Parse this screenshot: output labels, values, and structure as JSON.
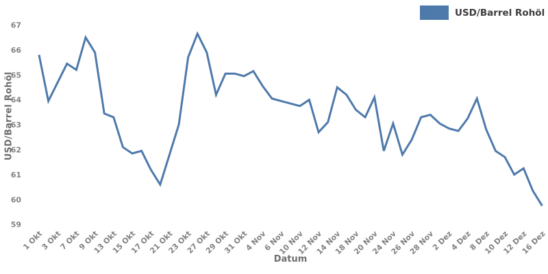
{
  "chart_data": {
    "type": "line",
    "title": "",
    "xlabel": "Datum",
    "ylabel": "USD/Barrel Rohöl",
    "legend": {
      "label": "USD/Barrel Rohöl",
      "position": "top-right"
    },
    "grid": false,
    "ylim": [
      59,
      67
    ],
    "yticks": [
      59,
      60,
      61,
      62,
      63,
      64,
      65,
      66,
      67
    ],
    "x": [
      "1 Okt",
      "2 Okt",
      "3 Okt",
      "6 Okt",
      "7 Okt",
      "8 Okt",
      "9 Okt",
      "10 Okt",
      "13 Okt",
      "14 Okt",
      "15 Okt",
      "16 Okt",
      "17 Okt",
      "20 Okt",
      "21 Okt",
      "22 Okt",
      "23 Okt",
      "24 Okt",
      "27 Okt",
      "28 Okt",
      "29 Okt",
      "30 Okt",
      "31 Okt",
      "3 Nov",
      "4 Nov",
      "5 Nov",
      "6 Nov",
      "7 Nov",
      "10 Nov",
      "11 Nov",
      "12 Nov",
      "13 Nov",
      "14 Nov",
      "17 Nov",
      "18 Nov",
      "19 Nov",
      "20 Nov",
      "21 Nov",
      "24 Nov",
      "25 Nov",
      "26 Nov",
      "27 Nov",
      "28 Nov",
      "1 Dez",
      "2 Dez",
      "3 Dez",
      "4 Dez",
      "5 Dez",
      "8 Dez",
      "9 Dez",
      "10 Dez",
      "11 Dez",
      "12 Dez",
      "15 Dez",
      "16 Dez"
    ],
    "xticks_shown": [
      "1 Okt",
      "3 Okt",
      "7 Okt",
      "9 Okt",
      "13 Okt",
      "15 Okt",
      "17 Okt",
      "21 Okt",
      "23 Okt",
      "27 Okt",
      "29 Okt",
      "31 Okt",
      "4 Nov",
      "6 Nov",
      "10 Nov",
      "12 Nov",
      "14 Nov",
      "18 Nov",
      "20 Nov",
      "24 Nov",
      "26 Nov",
      "28 Nov",
      "2 Dez",
      "4 Dez",
      "8 Dez",
      "10 Dez",
      "12 Dez",
      "16 Dez"
    ],
    "series": [
      {
        "name": "USD/Barrel Rohöl",
        "values": [
          65.8,
          63.95,
          64.7,
          65.45,
          65.2,
          66.5,
          65.9,
          63.45,
          63.3,
          62.1,
          61.85,
          61.95,
          61.2,
          60.6,
          61.8,
          63.0,
          65.7,
          66.65,
          65.9,
          64.2,
          65.05,
          65.05,
          64.95,
          65.15,
          64.55,
          64.05,
          63.95,
          63.85,
          63.75,
          64.0,
          62.7,
          63.1,
          64.5,
          64.2,
          63.6,
          63.3,
          64.1,
          61.95,
          63.05,
          61.8,
          62.4,
          63.3,
          63.4,
          63.05,
          62.85,
          62.75,
          63.25,
          64.05,
          62.8,
          61.95,
          61.7,
          61.0,
          61.25,
          60.35,
          59.75
        ]
      }
    ],
    "colors": {
      "line": "#4e79ab",
      "tick_label": "#828282",
      "axis_title": "#6e6e6e",
      "legend_text": "#3c3c3c",
      "background": "#ffffff"
    }
  }
}
